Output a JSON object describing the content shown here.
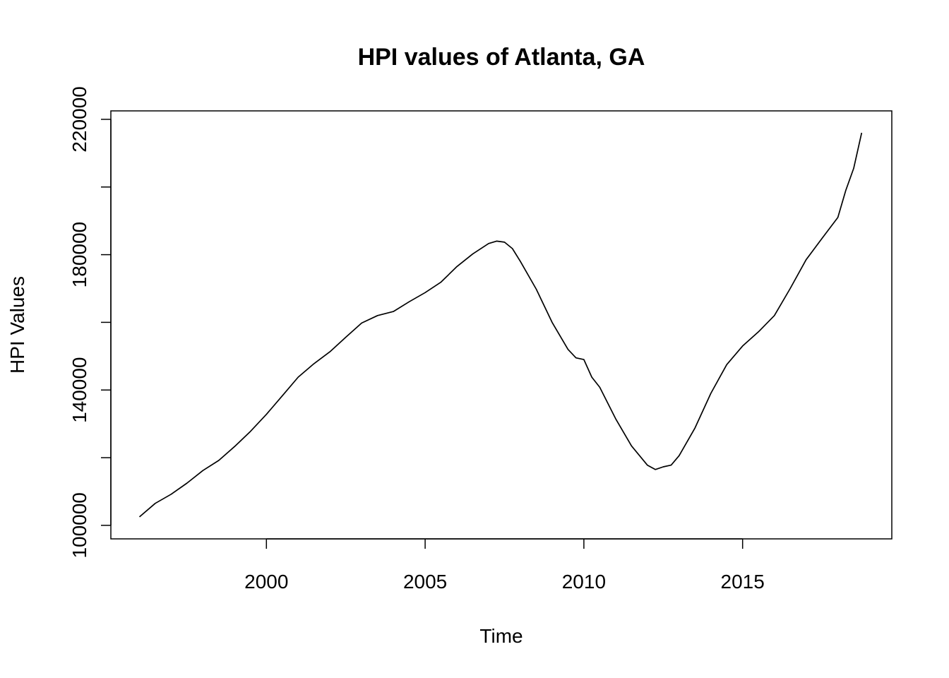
{
  "chart_data": {
    "type": "line",
    "title": "HPI values of Atlanta, GA",
    "xlabel": "Time",
    "ylabel": "HPI Values",
    "xlim": [
      1995.1,
      2019.7
    ],
    "ylim": [
      96000,
      222500
    ],
    "x_ticks": [
      2000,
      2005,
      2010,
      2015
    ],
    "x_tick_labels": [
      "2000",
      "2005",
      "2010",
      "2015"
    ],
    "y_ticks": [
      100000,
      120000,
      140000,
      160000,
      180000,
      200000,
      220000
    ],
    "y_tick_labels": [
      "100000",
      "",
      "140000",
      "",
      "180000",
      "",
      "220000"
    ],
    "grid": false,
    "series": [
      {
        "color": "#000000",
        "x": [
          1996.0,
          1996.5,
          1997.0,
          1997.5,
          1998.0,
          1998.5,
          1999.0,
          1999.5,
          2000.0,
          2000.5,
          2001.0,
          2001.5,
          2002.0,
          2002.5,
          2003.0,
          2003.5,
          2004.0,
          2004.5,
          2005.0,
          2005.5,
          2006.0,
          2006.5,
          2007.0,
          2007.25,
          2007.5,
          2007.75,
          2008.0,
          2008.5,
          2009.0,
          2009.5,
          2009.75,
          2010.0,
          2010.25,
          2010.5,
          2011.0,
          2011.5,
          2012.0,
          2012.25,
          2012.5,
          2012.75,
          2013.0,
          2013.5,
          2014.0,
          2014.5,
          2015.0,
          2015.5,
          2016.0,
          2016.5,
          2017.0,
          2017.5,
          2018.0,
          2018.25,
          2018.5,
          2018.75
        ],
        "y": [
          102500,
          106500,
          109200,
          112500,
          116200,
          119200,
          123300,
          127800,
          132800,
          138300,
          143800,
          147800,
          151300,
          155600,
          159800,
          162000,
          163200,
          166100,
          168800,
          171900,
          176500,
          180200,
          183300,
          184000,
          183700,
          181800,
          178000,
          169800,
          160000,
          152000,
          149500,
          149000,
          143800,
          140800,
          131500,
          123500,
          117800,
          116500,
          117300,
          117800,
          120600,
          128800,
          139000,
          147500,
          153000,
          157200,
          162000,
          170000,
          178500,
          184800,
          191000,
          199000,
          205500,
          216000
        ]
      }
    ]
  }
}
